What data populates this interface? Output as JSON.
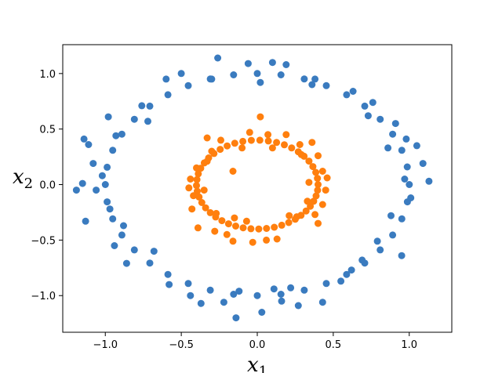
{
  "chart_data": {
    "type": "scatter",
    "title": "",
    "xlabel": "x",
    "xlabel_sub": "1",
    "ylabel": "x",
    "ylabel_sub": "2",
    "xlim": [
      -1.28,
      1.28
    ],
    "ylim": [
      -1.33,
      1.26
    ],
    "xticks": [
      -1.0,
      -0.5,
      0.0,
      0.5,
      1.0
    ],
    "yticks": [
      -1.0,
      -0.5,
      0.0,
      0.5,
      1.0
    ],
    "xtick_labels": [
      "−1.0",
      "−0.5",
      "0.0",
      "0.5",
      "1.0"
    ],
    "ytick_labels": [
      "−1.0",
      "−0.5",
      "0.0",
      "0.5",
      "1.0"
    ],
    "grid": false,
    "legend": "none",
    "series": [
      {
        "color": "#3a7bbf",
        "points": [
          [
            1.0,
            0.0
          ],
          [
            0.987,
            0.159
          ],
          [
            0.951,
            0.309
          ],
          [
            0.891,
            0.454
          ],
          [
            0.809,
            0.588
          ],
          [
            0.707,
            0.707
          ],
          [
            0.588,
            0.809
          ],
          [
            0.454,
            0.891
          ],
          [
            0.309,
            0.951
          ],
          [
            0.156,
            0.988
          ],
          [
            0.0,
            1.0
          ],
          [
            -0.156,
            0.988
          ],
          [
            -0.309,
            0.951
          ],
          [
            -0.454,
            0.891
          ],
          [
            -0.588,
            0.809
          ],
          [
            -0.707,
            0.707
          ],
          [
            -0.809,
            0.588
          ],
          [
            -0.891,
            0.454
          ],
          [
            -0.951,
            0.309
          ],
          [
            -0.988,
            0.156
          ],
          [
            -1.0,
            0.0
          ],
          [
            -0.988,
            -0.156
          ],
          [
            -0.951,
            -0.309
          ],
          [
            -0.891,
            -0.454
          ],
          [
            -0.809,
            -0.588
          ],
          [
            -0.707,
            -0.707
          ],
          [
            -0.588,
            -0.809
          ],
          [
            -0.454,
            -0.891
          ],
          [
            -0.309,
            -0.951
          ],
          [
            -0.156,
            -0.988
          ],
          [
            0.0,
            -1.0
          ],
          [
            0.156,
            -0.988
          ],
          [
            0.309,
            -0.951
          ],
          [
            0.454,
            -0.891
          ],
          [
            0.588,
            -0.809
          ],
          [
            0.707,
            -0.707
          ],
          [
            0.809,
            -0.588
          ],
          [
            0.891,
            -0.454
          ],
          [
            0.951,
            -0.309
          ],
          [
            0.988,
            -0.156
          ],
          [
            -1.19,
            -0.05
          ],
          [
            -1.15,
            0.01
          ],
          [
            -1.14,
            0.41
          ],
          [
            -1.13,
            -0.33
          ],
          [
            -1.11,
            0.36
          ],
          [
            -1.08,
            0.19
          ],
          [
            -1.06,
            -0.05
          ],
          [
            -0.98,
            0.61
          ],
          [
            -0.94,
            -0.55
          ],
          [
            -0.86,
            -0.71
          ],
          [
            -0.76,
            0.71
          ],
          [
            -0.6,
            0.95
          ],
          [
            -0.58,
            -0.9
          ],
          [
            -0.5,
            1.0
          ],
          [
            -0.44,
            -1.0
          ],
          [
            -0.37,
            -1.07
          ],
          [
            -0.26,
            1.14
          ],
          [
            -0.22,
            -1.06
          ],
          [
            -0.14,
            -1.2
          ],
          [
            -0.06,
            1.09
          ],
          [
            0.03,
            -1.15
          ],
          [
            0.1,
            1.1
          ],
          [
            0.16,
            -1.05
          ],
          [
            0.19,
            1.08
          ],
          [
            0.27,
            -1.09
          ],
          [
            0.38,
            0.95
          ],
          [
            0.43,
            -1.06
          ],
          [
            0.55,
            -0.87
          ],
          [
            0.63,
            0.84
          ],
          [
            0.69,
            -0.68
          ],
          [
            0.76,
            0.74
          ],
          [
            0.79,
            -0.51
          ],
          [
            0.91,
            0.55
          ],
          [
            0.95,
            -0.64
          ],
          [
            0.98,
            0.41
          ],
          [
            1.05,
            0.35
          ],
          [
            1.09,
            0.19
          ],
          [
            1.13,
            0.03
          ],
          [
            1.01,
            -0.12
          ],
          [
            0.97,
            0.05
          ],
          [
            -0.93,
            0.44
          ],
          [
            -1.02,
            0.08
          ],
          [
            -0.97,
            -0.22
          ],
          [
            -0.88,
            -0.37
          ],
          [
            0.86,
            0.33
          ],
          [
            0.88,
            -0.28
          ],
          [
            0.73,
            0.62
          ],
          [
            0.62,
            -0.77
          ],
          [
            -0.72,
            0.57
          ],
          [
            -0.68,
            -0.6
          ],
          [
            0.36,
            0.9
          ],
          [
            0.22,
            -0.93
          ],
          [
            -0.3,
            0.95
          ],
          [
            -0.12,
            -0.96
          ],
          [
            0.02,
            0.92
          ],
          [
            0.11,
            -0.94
          ]
        ]
      },
      {
        "color": "#ff7f0e",
        "points": [
          [
            0.4,
            0.0
          ],
          [
            0.396,
            0.056
          ],
          [
            0.385,
            0.11
          ],
          [
            0.366,
            0.162
          ],
          [
            0.34,
            0.211
          ],
          [
            0.308,
            0.255
          ],
          [
            0.27,
            0.295
          ],
          [
            0.226,
            0.33
          ],
          [
            0.178,
            0.358
          ],
          [
            0.127,
            0.379
          ],
          [
            0.073,
            0.393
          ],
          [
            0.017,
            0.4
          ],
          [
            -0.039,
            0.398
          ],
          [
            -0.095,
            0.389
          ],
          [
            -0.148,
            0.372
          ],
          [
            -0.198,
            0.348
          ],
          [
            -0.244,
            0.317
          ],
          [
            -0.285,
            0.28
          ],
          [
            -0.32,
            0.24
          ],
          [
            -0.349,
            0.195
          ],
          [
            -0.372,
            0.147
          ],
          [
            -0.388,
            0.097
          ],
          [
            -0.397,
            0.045
          ],
          [
            -0.4,
            -0.008
          ],
          [
            -0.395,
            -0.06
          ],
          [
            -0.383,
            -0.112
          ],
          [
            -0.365,
            -0.162
          ],
          [
            -0.34,
            -0.209
          ],
          [
            -0.309,
            -0.253
          ],
          [
            -0.274,
            -0.292
          ],
          [
            -0.233,
            -0.325
          ],
          [
            -0.189,
            -0.353
          ],
          [
            -0.142,
            -0.374
          ],
          [
            -0.093,
            -0.389
          ],
          [
            -0.042,
            -0.398
          ],
          [
            0.01,
            -0.4
          ],
          [
            0.061,
            -0.395
          ],
          [
            0.112,
            -0.384
          ],
          [
            0.161,
            -0.366
          ],
          [
            0.207,
            -0.342
          ],
          [
            0.25,
            -0.312
          ],
          [
            0.288,
            -0.277
          ],
          [
            0.321,
            -0.238
          ],
          [
            0.349,
            -0.195
          ],
          [
            0.371,
            -0.15
          ],
          [
            0.387,
            -0.102
          ],
          [
            0.397,
            -0.051
          ],
          [
            0.02,
            0.61
          ],
          [
            -0.03,
            -0.52
          ],
          [
            0.06,
            -0.5
          ],
          [
            0.13,
            -0.49
          ],
          [
            -0.16,
            -0.51
          ],
          [
            -0.2,
            -0.45
          ],
          [
            -0.28,
            -0.42
          ],
          [
            -0.39,
            -0.39
          ],
          [
            -0.4,
            0.15
          ],
          [
            -0.44,
            0.05
          ],
          [
            -0.42,
            -0.1
          ],
          [
            -0.43,
            -0.22
          ],
          [
            0.43,
            0.12
          ],
          [
            0.45,
            -0.05
          ],
          [
            0.43,
            -0.18
          ],
          [
            0.36,
            0.38
          ],
          [
            -0.33,
            0.42
          ],
          [
            -0.24,
            0.4
          ],
          [
            -0.05,
            0.47
          ],
          [
            0.07,
            0.45
          ],
          [
            0.19,
            0.45
          ],
          [
            0.28,
            0.36
          ],
          [
            -0.15,
            -0.3
          ],
          [
            0.26,
            -0.29
          ],
          [
            0.38,
            -0.27
          ],
          [
            -0.35,
            -0.05
          ],
          [
            0.34,
            0.02
          ],
          [
            0.29,
            0.27
          ],
          [
            -0.3,
            0.3
          ],
          [
            0.1,
            0.33
          ],
          [
            -0.1,
            0.33
          ],
          [
            0.33,
            -0.15
          ],
          [
            -0.27,
            -0.26
          ],
          [
            0.21,
            -0.28
          ],
          [
            -0.07,
            -0.33
          ],
          [
            -0.16,
            0.12
          ],
          [
            -0.33,
            0.21
          ],
          [
            0.4,
            0.26
          ],
          [
            0.4,
            -0.35
          ],
          [
            -0.45,
            -0.03
          ],
          [
            0.46,
            0.06
          ]
        ]
      }
    ]
  }
}
